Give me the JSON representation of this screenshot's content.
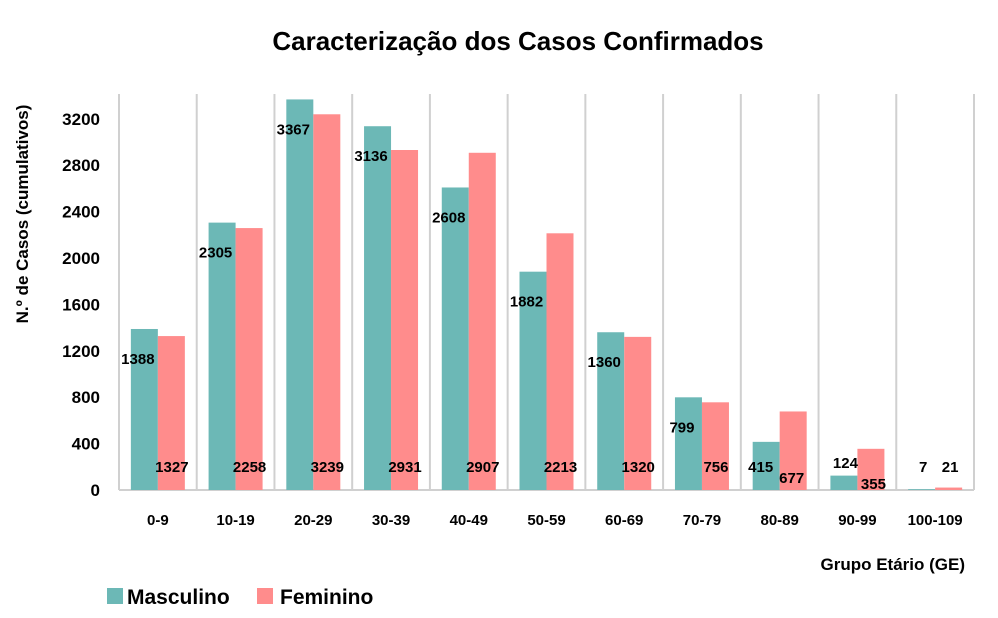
{
  "chart_data": {
    "type": "bar",
    "title": "Caracterização dos Casos Confirmados",
    "xlabel": "Grupo Etário (GE)",
    "ylabel": "N.º de Casos (cumulativos)",
    "ylim": [
      0,
      3400
    ],
    "yticks": [
      "0",
      "400",
      "800",
      "1200",
      "1600",
      "2000",
      "2400",
      "2800",
      "3200"
    ],
    "categories": [
      "0-9",
      "10-19",
      "20-29",
      "30-39",
      "40-49",
      "50-59",
      "60-69",
      "70-79",
      "80-89",
      "90-99",
      "100-109"
    ],
    "series": [
      {
        "name": "Masculino",
        "color": "#6cb8b6",
        "values": [
          1388,
          2305,
          3367,
          3136,
          2608,
          1882,
          1360,
          799,
          415,
          124,
          7
        ]
      },
      {
        "name": "Feminino",
        "color": "#ff8c8c",
        "values": [
          1327,
          2258,
          3239,
          2931,
          2907,
          2213,
          1320,
          756,
          677,
          355,
          21
        ]
      }
    ],
    "grid": "vertical",
    "legend_position": "bottom-left"
  }
}
